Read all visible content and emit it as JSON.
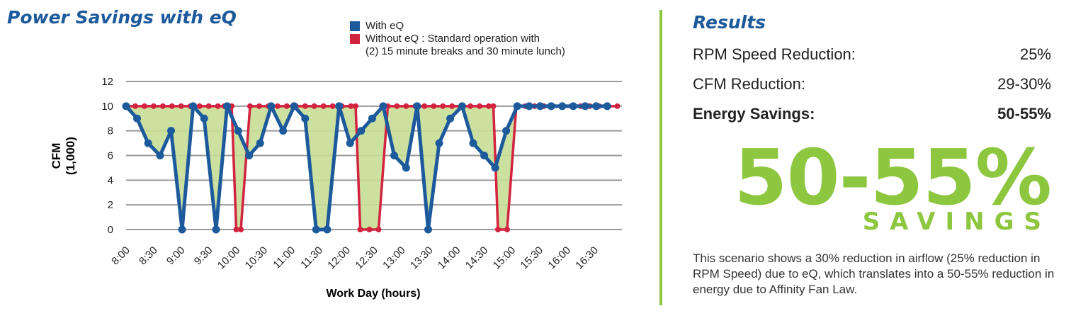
{
  "left_panel": {
    "title": "Power Savings with eQ"
  },
  "legend": {
    "items": [
      {
        "label": "With eQ",
        "color": "#1d5a9c"
      },
      {
        "label": "Without eQ : Standard operation with",
        "color": "#d2233f"
      }
    ],
    "note": "(2) 15 minute breaks and 30 minute lunch)"
  },
  "chart_data": {
    "type": "line",
    "title": "",
    "xlabel": "Work Day (hours)",
    "ylabel_line1": "CFM",
    "ylabel_line2": "(1,000)",
    "ylim": [
      0,
      12
    ],
    "yticks": [
      0,
      2,
      4,
      6,
      8,
      10,
      12
    ],
    "xlim": [
      480,
      1020
    ],
    "grid": true,
    "shaded_area_between_series": true,
    "shaded_area_color": "#c7dd96",
    "xticks": [
      {
        "label": "8:00",
        "value": 480
      },
      {
        "label": "8:30",
        "value": 510
      },
      {
        "label": "9:00",
        "value": 540
      },
      {
        "label": "9:30",
        "value": 570
      },
      {
        "label": "10:00",
        "value": 600
      },
      {
        "label": "10:30",
        "value": 630
      },
      {
        "label": "11:00",
        "value": 660
      },
      {
        "label": "11:30",
        "value": 690
      },
      {
        "label": "12:00",
        "value": 720
      },
      {
        "label": "12:30",
        "value": 750
      },
      {
        "label": "13:00",
        "value": 780
      },
      {
        "label": "13:30",
        "value": 810
      },
      {
        "label": "14:00",
        "value": 840
      },
      {
        "label": "14:30",
        "value": 870
      },
      {
        "label": "15:00",
        "value": 900
      },
      {
        "label": "15:30",
        "value": 930
      },
      {
        "label": "16:00",
        "value": 960
      },
      {
        "label": "16:30",
        "value": 990
      }
    ],
    "series": [
      {
        "name": "Without eQ : Standard operation with",
        "color": "#d2233f",
        "x": [
          480,
          490,
          500,
          510,
          520,
          530,
          540,
          550,
          560,
          570,
          580,
          587,
          595,
          600,
          605,
          615,
          625,
          635,
          645,
          655,
          665,
          675,
          685,
          695,
          705,
          715,
          725,
          730,
          735,
          745,
          755,
          765,
          775,
          785,
          795,
          805,
          815,
          825,
          835,
          845,
          855,
          865,
          875,
          880,
          885,
          895,
          905,
          915,
          925,
          935,
          945,
          955,
          965,
          975,
          985,
          995,
          1005,
          1015
        ],
        "y": [
          10,
          10,
          10,
          10,
          10,
          10,
          10,
          10,
          10,
          10,
          10,
          10,
          10,
          0,
          0,
          10,
          10,
          10,
          10,
          10,
          10,
          10,
          10,
          10,
          10,
          10,
          10,
          10,
          0,
          0,
          0,
          10,
          10,
          10,
          10,
          10,
          10,
          10,
          10,
          10,
          10,
          10,
          10,
          10,
          0,
          0,
          10,
          10,
          10,
          10,
          10,
          10,
          10,
          10,
          10,
          10,
          10,
          10
        ]
      },
      {
        "name": "With eQ",
        "color": "#1d5a9c",
        "x": [
          480,
          492,
          504,
          517,
          529,
          541,
          553,
          565,
          578,
          590,
          602,
          614,
          626,
          638,
          651,
          663,
          675,
          687,
          699,
          712,
          724,
          736,
          748,
          760,
          772,
          785,
          797,
          809,
          821,
          833,
          846,
          858,
          870,
          882,
          894,
          906,
          919,
          931,
          943,
          955,
          967,
          980,
          992,
          1004
        ],
        "y": [
          10,
          9,
          7,
          6,
          8,
          0,
          10,
          9,
          0,
          10,
          8,
          6,
          7,
          10,
          8,
          10,
          9,
          0,
          0,
          10,
          7,
          8,
          9,
          10,
          6,
          5,
          10,
          0,
          7,
          9,
          10,
          7,
          6,
          5,
          8,
          10,
          10,
          10,
          10,
          10,
          10,
          10,
          10,
          10
        ]
      }
    ]
  },
  "results": {
    "title": "Results",
    "rows": [
      {
        "label": "RPM Speed Reduction:",
        "value": "25%"
      },
      {
        "label": "CFM Reduction:",
        "value": "29-30%"
      },
      {
        "label": "Energy Savings:",
        "value": "50-55%"
      }
    ],
    "big_value": "50-55%",
    "big_word": "SAVINGS",
    "description": "This scenario shows a 30% reduction in airflow (25% reduction in RPM Speed) due to eQ, which translates into a 50-55% reduction in energy due to Affinity Fan Law."
  }
}
